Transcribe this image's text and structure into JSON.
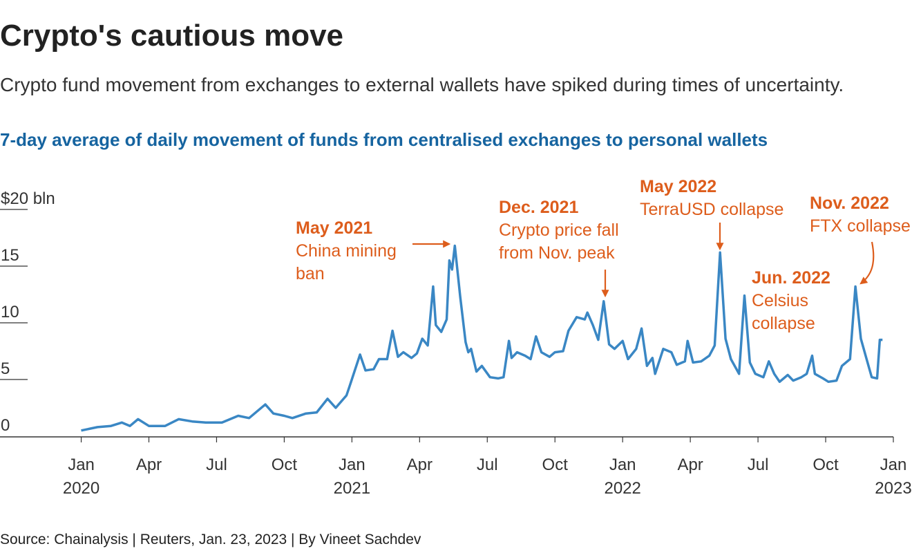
{
  "chart_data": {
    "type": "line",
    "title": "Crypto's cautious move",
    "subtitle": "Crypto fund movement from exchanges to external wallets have spiked during times of uncertainty.",
    "chart_title": "7-day average of daily movement of funds from centralised exchanges to personal wallets",
    "source": "Source: Chainalysis | Reuters, Jan. 23, 2023 | By Vineet Sachdev",
    "color": "#3a87c4",
    "xlim": [
      2019.7,
      2023
    ],
    "xticks": [
      {
        "value": 2020,
        "label": "Jan 2020"
      },
      {
        "value": 2020.25,
        "label": "Apr"
      },
      {
        "value": 2020.5,
        "label": "Jul"
      },
      {
        "value": 2020.75,
        "label": "Oct"
      },
      {
        "value": 2021,
        "label": "Jan 2021"
      },
      {
        "value": 2021.25,
        "label": "Apr"
      },
      {
        "value": 2021.5,
        "label": "Jul"
      },
      {
        "value": 2021.75,
        "label": "Oct"
      },
      {
        "value": 2022,
        "label": "Jan 2022"
      },
      {
        "value": 2022.25,
        "label": "Apr"
      },
      {
        "value": 2022.5,
        "label": "Jul"
      },
      {
        "value": 2022.75,
        "label": "Oct"
      },
      {
        "value": 2023,
        "label": "Jan 2023"
      }
    ],
    "ylim": [
      0,
      20
    ],
    "yticks": [
      0,
      5,
      10,
      15,
      {
        "value": 20,
        "label": "$20 bln"
      }
    ],
    "x": [
      2020.0,
      2020.06,
      2020.11,
      2020.15,
      2020.18,
      2020.21,
      2020.25,
      2020.31,
      2020.36,
      2020.41,
      2020.46,
      2020.52,
      2020.58,
      2020.62,
      2020.68,
      2020.71,
      2020.75,
      2020.78,
      2020.83,
      2020.87,
      2020.91,
      2020.94,
      2020.98,
      2020.99,
      2021.03,
      2021.05,
      2021.08,
      2021.1,
      2021.13,
      2021.15,
      2021.17,
      2021.19,
      2021.22,
      2021.24,
      2021.26,
      2021.28,
      2021.3,
      2021.31,
      2021.33,
      2021.35,
      2021.36,
      2021.37,
      2021.38,
      2021.4,
      2021.42,
      2021.43,
      2021.44,
      2021.46,
      2021.48,
      2021.51,
      2021.54,
      2021.56,
      2021.58,
      2021.59,
      2021.61,
      2021.64,
      2021.66,
      2021.68,
      2021.7,
      2021.73,
      2021.75,
      2021.78,
      2021.8,
      2021.83,
      2021.86,
      2021.87,
      2021.89,
      2021.91,
      2021.93,
      2021.95,
      2021.97,
      2022.0,
      2022.02,
      2022.05,
      2022.07,
      2022.09,
      2022.11,
      2022.12,
      2022.15,
      2022.18,
      2022.2,
      2022.23,
      2022.24,
      2022.26,
      2022.29,
      2022.32,
      2022.34,
      2022.36,
      2022.38,
      2022.4,
      2022.43,
      2022.45,
      2022.47,
      2022.49,
      2022.52,
      2022.54,
      2022.56,
      2022.58,
      2022.61,
      2022.63,
      2022.66,
      2022.68,
      2022.7,
      2022.71,
      2022.74,
      2022.76,
      2022.79,
      2022.81,
      2022.84,
      2022.86,
      2022.88,
      2022.9,
      2022.92,
      2022.94,
      2022.95,
      2022.96
    ],
    "values": [
      0.5,
      0.8,
      0.9,
      1.2,
      0.9,
      1.5,
      0.9,
      0.9,
      1.5,
      1.3,
      1.2,
      1.2,
      1.8,
      1.6,
      2.8,
      2.0,
      1.8,
      1.6,
      2.0,
      2.1,
      3.3,
      2.5,
      3.6,
      4.3,
      7.2,
      5.8,
      5.9,
      6.8,
      6.8,
      9.3,
      7.0,
      7.4,
      6.9,
      7.3,
      8.6,
      8.0,
      13.2,
      9.8,
      9.2,
      10.3,
      15.5,
      14.7,
      16.8,
      12.3,
      8.3,
      7.4,
      7.7,
      5.7,
      6.2,
      5.2,
      5.1,
      5.2,
      8.4,
      6.9,
      7.4,
      7.1,
      6.8,
      8.8,
      7.4,
      7.0,
      7.4,
      7.5,
      9.3,
      10.5,
      10.3,
      10.9,
      9.8,
      8.5,
      11.9,
      8.1,
      7.7,
      8.4,
      6.8,
      7.7,
      9.5,
      6.2,
      6.9,
      5.5,
      7.7,
      7.4,
      6.3,
      6.6,
      8.4,
      6.5,
      6.6,
      7.1,
      8.0,
      16.2,
      8.6,
      6.8,
      5.5,
      12.4,
      6.5,
      5.5,
      5.2,
      6.6,
      5.5,
      4.8,
      5.4,
      4.9,
      5.2,
      5.5,
      7.1,
      5.5,
      5.1,
      4.8,
      4.9,
      6.2,
      6.8,
      13.2,
      8.6,
      6.9,
      5.2,
      5.1,
      8.5,
      8.5
    ],
    "annotations": [
      {
        "title": "May 2021",
        "lines": [
          "China mining",
          "ban"
        ]
      },
      {
        "title": "Dec. 2021",
        "lines": [
          "Crypto price fall",
          "from Nov. peak"
        ]
      },
      {
        "title": "May 2022",
        "lines": [
          "TerraUSD collapse"
        ]
      },
      {
        "title": "Nov. 2022",
        "lines": [
          "FTX collapse"
        ]
      },
      {
        "title": "Jun. 2022",
        "lines": [
          "Celsius",
          "collapse"
        ]
      }
    ]
  }
}
